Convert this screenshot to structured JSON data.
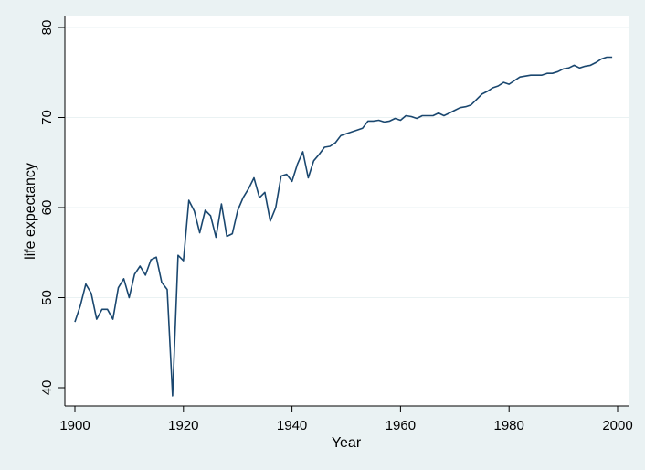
{
  "chart_data": {
    "type": "line",
    "xlabel": "Year",
    "ylabel": "life expectancy",
    "xlim": [
      1900,
      2000
    ],
    "ylim": [
      40,
      80
    ],
    "xticks": [
      1900,
      1920,
      1940,
      1960,
      1980,
      2000
    ],
    "yticks": [
      40,
      50,
      60,
      70,
      80
    ],
    "grid": "horizontal",
    "colors": {
      "plot_bg": "#ffffff",
      "outer_bg": "#eaf2f3",
      "line": "#1a476f",
      "grid": "#eaf2f3",
      "axis": "#000000"
    },
    "series": [
      {
        "x": [
          1900,
          1901,
          1902,
          1903,
          1904,
          1905,
          1906,
          1907,
          1908,
          1909,
          1910,
          1911,
          1912,
          1913,
          1914,
          1915,
          1916,
          1917,
          1918,
          1919,
          1920,
          1921,
          1922,
          1923,
          1924,
          1925,
          1926,
          1927,
          1928,
          1929,
          1930,
          1931,
          1932,
          1933,
          1934,
          1935,
          1936,
          1937,
          1938,
          1939,
          1940,
          1941,
          1942,
          1943,
          1944,
          1945,
          1946,
          1947,
          1948,
          1949,
          1950,
          1951,
          1952,
          1953,
          1954,
          1955,
          1956,
          1957,
          1958,
          1959,
          1960,
          1961,
          1962,
          1963,
          1964,
          1965,
          1966,
          1967,
          1968,
          1969,
          1970,
          1971,
          1972,
          1973,
          1974,
          1975,
          1976,
          1977,
          1978,
          1979,
          1980,
          1981,
          1982,
          1983,
          1984,
          1985,
          1986,
          1987,
          1988,
          1989,
          1990,
          1991,
          1992,
          1993,
          1994,
          1995,
          1996,
          1997,
          1998,
          1999
        ],
        "values": [
          47.3,
          49.1,
          51.5,
          50.5,
          47.6,
          48.7,
          48.7,
          47.6,
          51.1,
          52.1,
          50.0,
          52.6,
          53.5,
          52.5,
          54.2,
          54.5,
          51.7,
          50.9,
          39.1,
          54.7,
          54.1,
          60.8,
          59.6,
          57.2,
          59.7,
          59.1,
          56.7,
          60.4,
          56.8,
          57.1,
          59.7,
          61.1,
          62.1,
          63.3,
          61.1,
          61.7,
          58.5,
          60.0,
          63.5,
          63.7,
          62.9,
          64.8,
          66.2,
          63.3,
          65.2,
          65.9,
          66.7,
          66.8,
          67.2,
          68.0,
          68.2,
          68.4,
          68.6,
          68.8,
          69.6,
          69.6,
          69.7,
          69.5,
          69.6,
          69.9,
          69.7,
          70.2,
          70.1,
          69.9,
          70.2,
          70.2,
          70.2,
          70.5,
          70.2,
          70.5,
          70.8,
          71.1,
          71.2,
          71.4,
          72.0,
          72.6,
          72.9,
          73.3,
          73.5,
          73.9,
          73.7,
          74.1,
          74.5,
          74.6,
          74.7,
          74.7,
          74.7,
          74.9,
          74.9,
          75.1,
          75.4,
          75.5,
          75.8,
          75.5,
          75.7,
          75.8,
          76.1,
          76.5,
          76.7,
          76.7
        ]
      }
    ]
  }
}
